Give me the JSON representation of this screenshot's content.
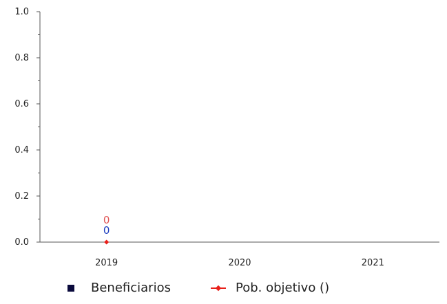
{
  "chart_data": {
    "type": "bar",
    "categories": [
      "2019",
      "2020",
      "2021"
    ],
    "ylim": [
      0,
      1.0
    ],
    "yticks": [
      "0.0",
      "0.2",
      "0.4",
      "0.6",
      "0.8",
      "1.0"
    ],
    "series": [
      {
        "name": "Beneficiarios",
        "kind": "bar",
        "color": "#0a0a3c",
        "values": [
          0,
          null,
          null
        ],
        "labels": [
          "0",
          "",
          ""
        ],
        "label_color": "#1f3fbf"
      },
      {
        "name": "Pob. objetivo ()",
        "kind": "line",
        "color": "#e8201a",
        "values": [
          0,
          null,
          null
        ],
        "labels": [
          "0",
          "",
          ""
        ],
        "label_color": "#e05555"
      }
    ],
    "legend_position": "bottom"
  }
}
